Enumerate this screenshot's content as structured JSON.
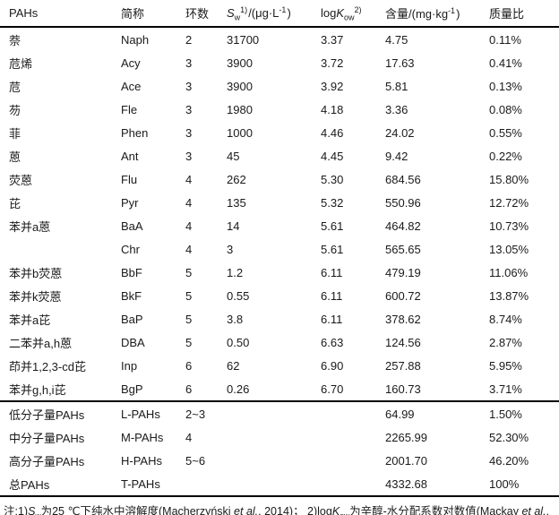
{
  "page": {
    "background": "#ffffff",
    "text_color": "#1a1a1a",
    "line_color": "#000000"
  },
  "table": {
    "headers": {
      "pahs": "PAHs",
      "abbr": "简称",
      "rings": "环数",
      "sw": {
        "sym": "S",
        "sub": "w",
        "sup": "1)",
        "unit_pre": "/(μg·L",
        "unit_sup": "-1",
        "unit_post": ")"
      },
      "logkow": {
        "pre": "log",
        "sym": "K",
        "sub": "ow",
        "sup": "2)"
      },
      "content": {
        "pre": "含量/(mg·kg",
        "sup": "-1",
        "post": ")"
      },
      "ratio": "质量比"
    },
    "rows": [
      {
        "name": "萘",
        "abbr": "Naph",
        "rings": "2",
        "sw": "31700",
        "logkow": "3.37",
        "content": "4.75",
        "ratio": "0.11%"
      },
      {
        "name": "苊烯",
        "abbr": "Acy",
        "rings": "3",
        "sw": "3900",
        "logkow": "3.72",
        "content": "17.63",
        "ratio": "0.41%"
      },
      {
        "name": "苊",
        "abbr": "Ace",
        "rings": "3",
        "sw": "3900",
        "logkow": "3.92",
        "content": "5.81",
        "ratio": "0.13%"
      },
      {
        "name": "芴",
        "abbr": "Fle",
        "rings": "3",
        "sw": "1980",
        "logkow": "4.18",
        "content": "3.36",
        "ratio": "0.08%"
      },
      {
        "name": "菲",
        "abbr": "Phen",
        "rings": "3",
        "sw": "1000",
        "logkow": "4.46",
        "content": "24.02",
        "ratio": "0.55%"
      },
      {
        "name": "蒽",
        "abbr": "Ant",
        "rings": "3",
        "sw": "45",
        "logkow": "4.45",
        "content": "9.42",
        "ratio": "0.22%"
      },
      {
        "name": "荧蒽",
        "abbr": "Flu",
        "rings": "4",
        "sw": "262",
        "logkow": "5.30",
        "content": "684.56",
        "ratio": "15.80%"
      },
      {
        "name": "芘",
        "abbr": "Pyr",
        "rings": "4",
        "sw": "135",
        "logkow": "5.32",
        "content": "550.96",
        "ratio": "12.72%"
      },
      {
        "name": "苯并a蒽",
        "abbr": "BaA",
        "rings": "4",
        "sw": "14",
        "logkow": "5.61",
        "content": "464.82",
        "ratio": "10.73%"
      },
      {
        "name": "",
        "abbr": "Chr",
        "rings": "4",
        "sw": "3",
        "logkow": "5.61",
        "content": "565.65",
        "ratio": "13.05%"
      },
      {
        "name": "苯并b荧蒽",
        "abbr": "BbF",
        "rings": "5",
        "sw": "1.2",
        "logkow": "6.11",
        "content": "479.19",
        "ratio": "11.06%"
      },
      {
        "name": "苯并k荧蒽",
        "abbr": "BkF",
        "rings": "5",
        "sw": "0.55",
        "logkow": "6.11",
        "content": "600.72",
        "ratio": "13.87%"
      },
      {
        "name": "苯并a芘",
        "abbr": "BaP",
        "rings": "5",
        "sw": "3.8",
        "logkow": "6.11",
        "content": "378.62",
        "ratio": "8.74%"
      },
      {
        "name": "二苯并a,h蒽",
        "abbr": "DBA",
        "rings": "5",
        "sw": "0.50",
        "logkow": "6.63",
        "content": "124.56",
        "ratio": "2.87%"
      },
      {
        "name": "茚并1,2,3-cd芘",
        "abbr": "Inp",
        "rings": "6",
        "sw": "62",
        "logkow": "6.90",
        "content": "257.88",
        "ratio": "5.95%"
      },
      {
        "name": "苯并g,h,i芘",
        "abbr": "BgP",
        "rings": "6",
        "sw": "0.26",
        "logkow": "6.70",
        "content": "160.73",
        "ratio": "3.71%"
      }
    ],
    "summary_rows": [
      {
        "name": "低分子量PAHs",
        "abbr": "L-PAHs",
        "rings": "2~3",
        "sw": "",
        "logkow": "",
        "content": "64.99",
        "ratio": "1.50%"
      },
      {
        "name": "中分子量PAHs",
        "abbr": "M-PAHs",
        "rings": "4",
        "sw": "",
        "logkow": "",
        "content": "2265.99",
        "ratio": "52.30%"
      },
      {
        "name": "高分子量PAHs",
        "abbr": "H-PAHs",
        "rings": "5~6",
        "sw": "",
        "logkow": "",
        "content": "2001.70",
        "ratio": "46.20%"
      },
      {
        "name": "总PAHs",
        "abbr": "T-PAHs",
        "rings": "",
        "sw": "",
        "logkow": "",
        "content": "4332.68",
        "ratio": "100%"
      }
    ]
  },
  "note": {
    "segments": [
      {
        "t": "注:1)",
        "s": "n"
      },
      {
        "t": "S",
        "s": "i"
      },
      {
        "t": "w",
        "s": "sub"
      },
      {
        "t": "为25 ℃下纯水中溶解度(Macherzyński ",
        "s": "n"
      },
      {
        "t": "et al.",
        "s": "i"
      },
      {
        "t": ", 2014)； 2)log",
        "s": "n"
      },
      {
        "t": "K",
        "s": "i"
      },
      {
        "t": "ow",
        "s": "sub"
      },
      {
        "t": "为辛醇-水分配系数对数值(Mackay ",
        "s": "n"
      },
      {
        "t": "et al.",
        "s": "i"
      },
      {
        "t": ",",
        "s": "n"
      }
    ]
  }
}
